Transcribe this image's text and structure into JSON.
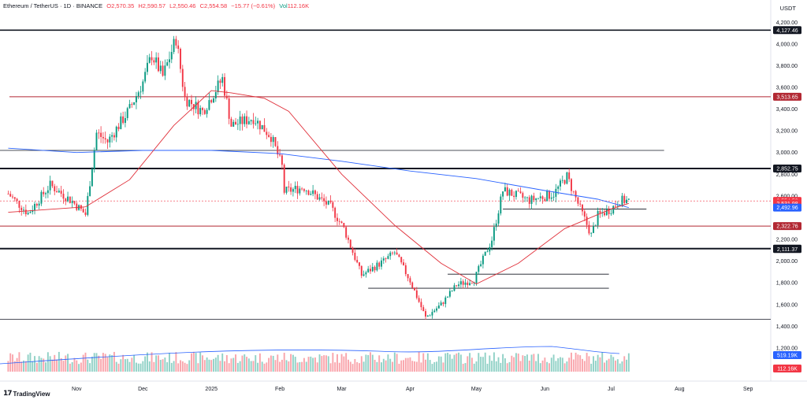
{
  "header": {
    "pair": "Ethereum / TetherUS · 1D · BINANCE",
    "open": "O2,570.35",
    "high": "H2,590.57",
    "low": "L2,550.46",
    "close": "C2,554.58",
    "change": "−15.77 (−0.61%)",
    "vol_label": "Vol",
    "vol_value": "112.16K"
  },
  "unit": "USDT",
  "brand": "TradingView",
  "colors": {
    "up": "#089981",
    "down": "#f23645",
    "ma_red": "#e0303a",
    "ma_blue": "#2962ff",
    "res_red": "#b22833"
  },
  "chart_data": {
    "type": "candlestick",
    "x_tick_labels": [
      "Nov",
      "Dec",
      "2025",
      "Feb",
      "Mar",
      "Apr",
      "May",
      "Jun",
      "Jul",
      "Aug",
      "Sep"
    ],
    "y_tick_labels": [
      "4,200.00",
      "4,000.00",
      "3,800.00",
      "3,600.00",
      "3,400.00",
      "3,200.00",
      "3,000.00",
      "2,800.00",
      "2,600.00",
      "2,200.00",
      "2,000.00",
      "1,800.00",
      "1,600.00",
      "1,400.00",
      "1,200.00"
    ],
    "ylim": [
      1040,
      4260
    ],
    "price_badges": [
      {
        "label": "4,127.46",
        "value": 4127.46,
        "color": "#131722"
      },
      {
        "label": "3,513.65",
        "value": 3513.65,
        "color": "#b22833"
      },
      {
        "label": "2,852.75",
        "value": 2852.75,
        "color": "#131722"
      },
      {
        "label": "2,554.58",
        "value": 2554.58,
        "color": "#f23645"
      },
      {
        "label": "12:39:40",
        "value": 2520,
        "color": "#f23645"
      },
      {
        "label": "2,531.98",
        "value": 2531.98,
        "color": "#f23645"
      },
      {
        "label": "2,492.96",
        "value": 2492.96,
        "color": "#2962ff"
      },
      {
        "label": "2,322.76",
        "value": 2322.76,
        "color": "#b22833"
      },
      {
        "label": "2,114.85",
        "value": 2114.85,
        "color": "#131722"
      },
      {
        "label": "2,111.37",
        "value": 2111.37,
        "color": "#131722"
      }
    ],
    "volume_badges": [
      {
        "label": "519.19K",
        "color": "#2962ff"
      },
      {
        "label": "112.16K",
        "color": "#f23645"
      }
    ],
    "horizontal_levels": [
      {
        "value": 4127.46,
        "color": "#131722",
        "width": 1.6
      },
      {
        "value": 3513.65,
        "color": "#b22833",
        "width": 1
      },
      {
        "value": 3020,
        "color": "#131722",
        "width": 0.8
      },
      {
        "value": 2852.75,
        "color": "#131722",
        "width": 2
      },
      {
        "value": 2322.76,
        "color": "#b22833",
        "width": 1
      },
      {
        "value": 2114.85,
        "color": "#131722",
        "width": 2
      },
      {
        "value": 1465,
        "color": "#131722",
        "width": 0.8
      }
    ],
    "segments": [
      {
        "from": "2025-05-13",
        "to": "2025-07-17",
        "value": 2480
      },
      {
        "from": "2025-04-18",
        "to": "2025-06-30",
        "value": 1880
      },
      {
        "from": "2025-03-13",
        "to": "2025-06-30",
        "value": 1750
      }
    ],
    "close_path": [
      [
        "2024-10-01",
        2620
      ],
      [
        "2024-10-10",
        2440
      ],
      [
        "2024-10-20",
        2700
      ],
      [
        "2024-10-30",
        2550
      ],
      [
        "2024-11-05",
        2430
      ],
      [
        "2024-11-10",
        3180
      ],
      [
        "2024-11-15",
        3100
      ],
      [
        "2024-11-25",
        3400
      ],
      [
        "2024-12-01",
        3650
      ],
      [
        "2024-12-05",
        3900
      ],
      [
        "2024-12-10",
        3700
      ],
      [
        "2024-12-16",
        4050
      ],
      [
        "2024-12-20",
        3500
      ],
      [
        "2024-12-28",
        3380
      ],
      [
        "2025-01-06",
        3680
      ],
      [
        "2025-01-10",
        3250
      ],
      [
        "2025-01-20",
        3320
      ],
      [
        "2025-01-28",
        3150
      ],
      [
        "2025-02-02",
        2870
      ],
      [
        "2025-02-03",
        2640
      ],
      [
        "2025-02-12",
        2680
      ],
      [
        "2025-02-24",
        2500
      ],
      [
        "2025-03-02",
        2300
      ],
      [
        "2025-03-10",
        1870
      ],
      [
        "2025-03-20",
        2000
      ],
      [
        "2025-03-25",
        2080
      ],
      [
        "2025-04-01",
        1820
      ],
      [
        "2025-04-08",
        1480
      ],
      [
        "2025-04-15",
        1600
      ],
      [
        "2025-04-22",
        1780
      ],
      [
        "2025-04-30",
        1830
      ],
      [
        "2025-05-08",
        2200
      ],
      [
        "2025-05-13",
        2650
      ],
      [
        "2025-05-25",
        2560
      ],
      [
        "2025-06-05",
        2620
      ],
      [
        "2025-06-11",
        2780
      ],
      [
        "2025-06-16",
        2530
      ],
      [
        "2025-06-22",
        2240
      ],
      [
        "2025-06-25",
        2420
      ],
      [
        "2025-07-01",
        2480
      ],
      [
        "2025-07-05",
        2560
      ],
      [
        "2025-07-09",
        2554.58
      ]
    ],
    "ma_red_path": [
      [
        "2024-10-01",
        2450
      ],
      [
        "2024-11-05",
        2500
      ],
      [
        "2024-11-25",
        2750
      ],
      [
        "2024-12-15",
        3250
      ],
      [
        "2025-01-01",
        3570
      ],
      [
        "2025-01-10",
        3550
      ],
      [
        "2025-01-25",
        3500
      ],
      [
        "2025-02-05",
        3380
      ],
      [
        "2025-03-01",
        2800
      ],
      [
        "2025-03-25",
        2330
      ],
      [
        "2025-04-15",
        1980
      ],
      [
        "2025-05-01",
        1790
      ],
      [
        "2025-05-20",
        1980
      ],
      [
        "2025-06-10",
        2300
      ],
      [
        "2025-07-01",
        2480
      ],
      [
        "2025-07-09",
        2531.98
      ]
    ],
    "ma_blue_path": [
      [
        "2024-10-01",
        3040
      ],
      [
        "2024-11-01",
        3000
      ],
      [
        "2024-12-01",
        3020
      ],
      [
        "2025-01-01",
        3020
      ],
      [
        "2025-02-01",
        2990
      ],
      [
        "2025-03-01",
        2920
      ],
      [
        "2025-04-01",
        2830
      ],
      [
        "2025-05-01",
        2760
      ],
      [
        "2025-06-01",
        2650
      ],
      [
        "2025-06-25",
        2570
      ],
      [
        "2025-07-09",
        2492.96
      ]
    ]
  }
}
